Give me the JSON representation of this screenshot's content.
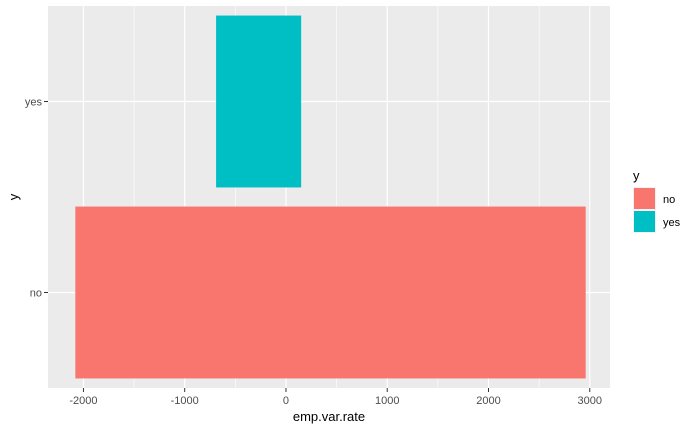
{
  "chart_data": {
    "type": "bar",
    "orientation": "horizontal",
    "title": "",
    "xlabel": "emp.var.rate",
    "ylabel": "y",
    "xlim": [
      -2350,
      3200
    ],
    "xticks": [
      -2000,
      -1000,
      0,
      1000,
      2000,
      3000
    ],
    "xtick_labels": [
      "-2000",
      "-1000",
      "0",
      "1000",
      "2000",
      "3000"
    ],
    "categories": [
      "no",
      "yes"
    ],
    "bars": [
      {
        "category": "no",
        "start": -2080,
        "end": 2960
      },
      {
        "category": "yes",
        "start": -690,
        "end": 150
      }
    ],
    "grid": true,
    "legend": {
      "title": "y",
      "position": "right",
      "entries": [
        "no",
        "yes"
      ]
    },
    "colors": {
      "no": "#F8766D",
      "yes": "#00BFC4",
      "panel": "#EBEBEB",
      "grid": "#FFFFFF"
    }
  }
}
